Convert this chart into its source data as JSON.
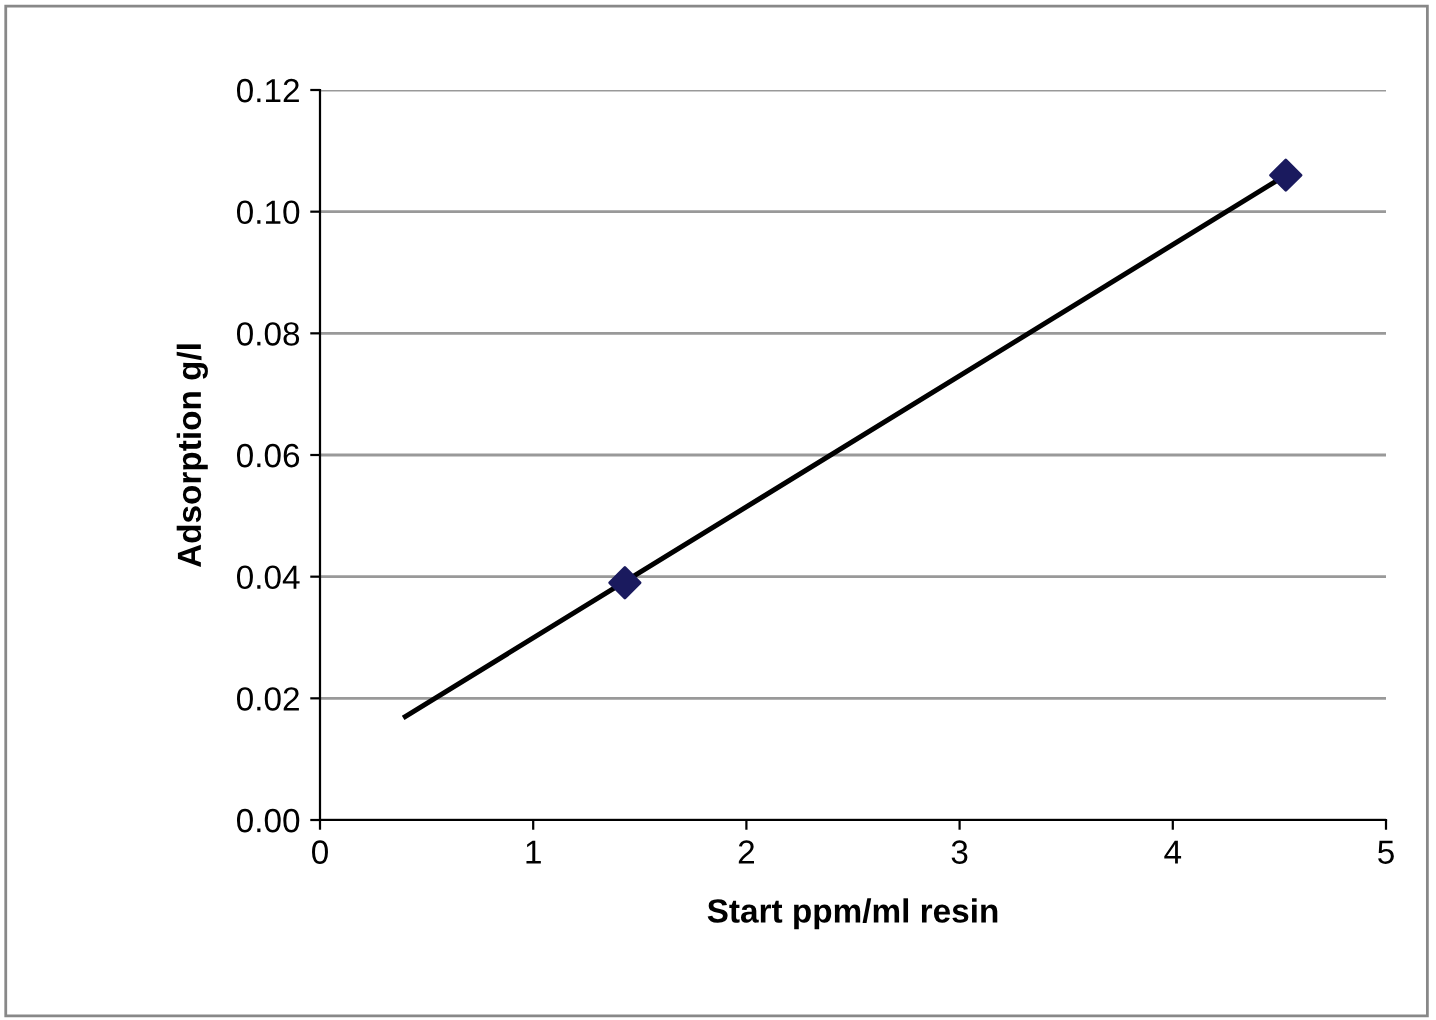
{
  "chart_data": {
    "type": "scatter",
    "xlabel": "Start ppm/ml resin",
    "ylabel": "Adsorption g/l",
    "series": [
      {
        "color": "#1a1a5e",
        "marker": "diamond",
        "x": [
          1.43,
          4.53
        ],
        "values": [
          0.039,
          0.106
        ]
      },
      {
        "type": "line",
        "color": "#000000",
        "marker": "none",
        "line_style": "solid",
        "x": [
          0.4,
          4.53
        ],
        "values": [
          0.017,
          0.106
        ]
      }
    ],
    "xlim": [
      0,
      5
    ],
    "xticks": [
      0,
      1,
      2,
      3,
      4,
      5
    ],
    "ylim": [
      0,
      0.12
    ],
    "yticks": [
      {
        "value": 0,
        "label": "0.00"
      },
      {
        "value": 0.02,
        "label": "0.02"
      },
      {
        "value": 0.04,
        "label": "0.04"
      },
      {
        "value": 0.06,
        "label": "0.06"
      },
      {
        "value": 0.08,
        "label": "0.08"
      },
      {
        "value": 0.1,
        "label": "0.10"
      },
      {
        "value": 0.12,
        "label": "0.12"
      }
    ],
    "grid": "y",
    "legend": false
  }
}
